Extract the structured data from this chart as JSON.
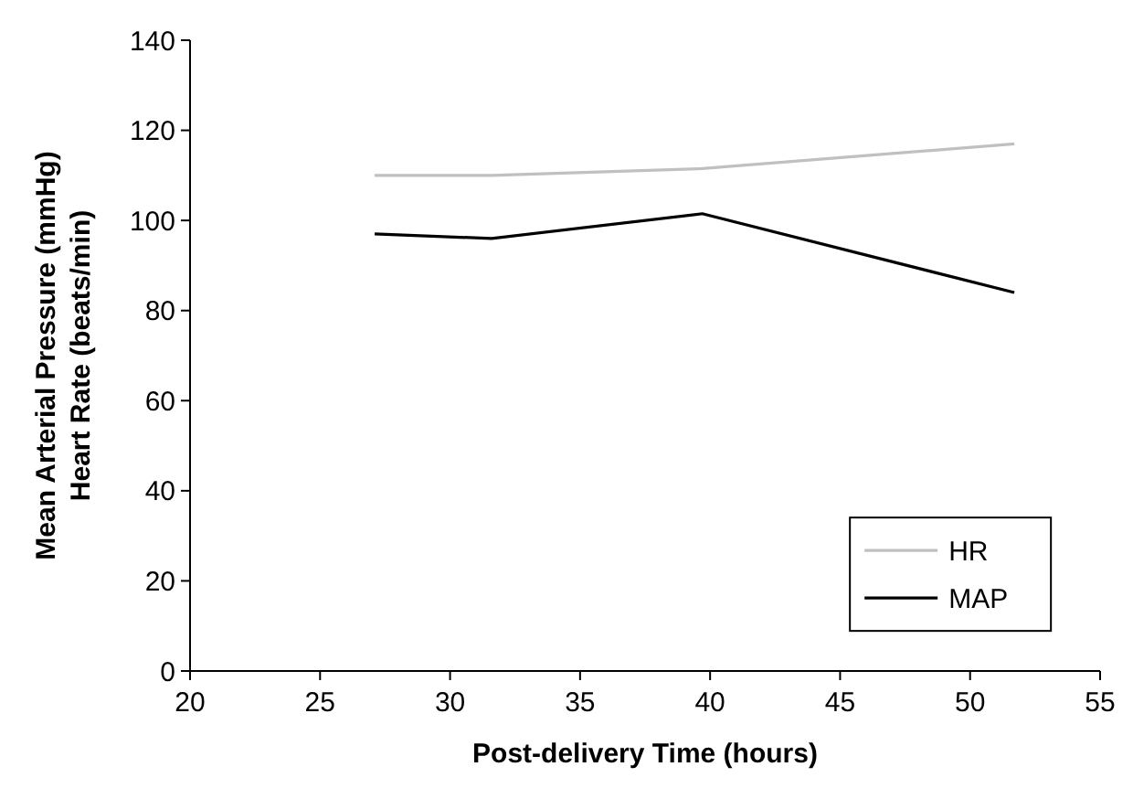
{
  "chart_data": {
    "type": "line",
    "xlabel": "Post-delivery Time (hours)",
    "ylabel": "Mean Arterial Pressure (mmHg)\nHeart Rate (beats/min)",
    "x": [
      27.1,
      31.6,
      39.7,
      51.7
    ],
    "series": [
      {
        "name": "HR",
        "color": "#c0c0c0",
        "values": [
          110,
          110,
          111.5,
          117
        ]
      },
      {
        "name": "MAP",
        "color": "#000000",
        "values": [
          97,
          96,
          101.5,
          84
        ]
      }
    ],
    "xlim": [
      20,
      55
    ],
    "xticks": [
      20,
      25,
      30,
      35,
      40,
      45,
      50,
      55
    ],
    "ylim": [
      0,
      140
    ],
    "yticks": [
      0,
      20,
      40,
      60,
      80,
      100,
      120,
      140
    ],
    "grid": false,
    "legend": "bottom right",
    "marker": "none",
    "line_style": "solid"
  }
}
